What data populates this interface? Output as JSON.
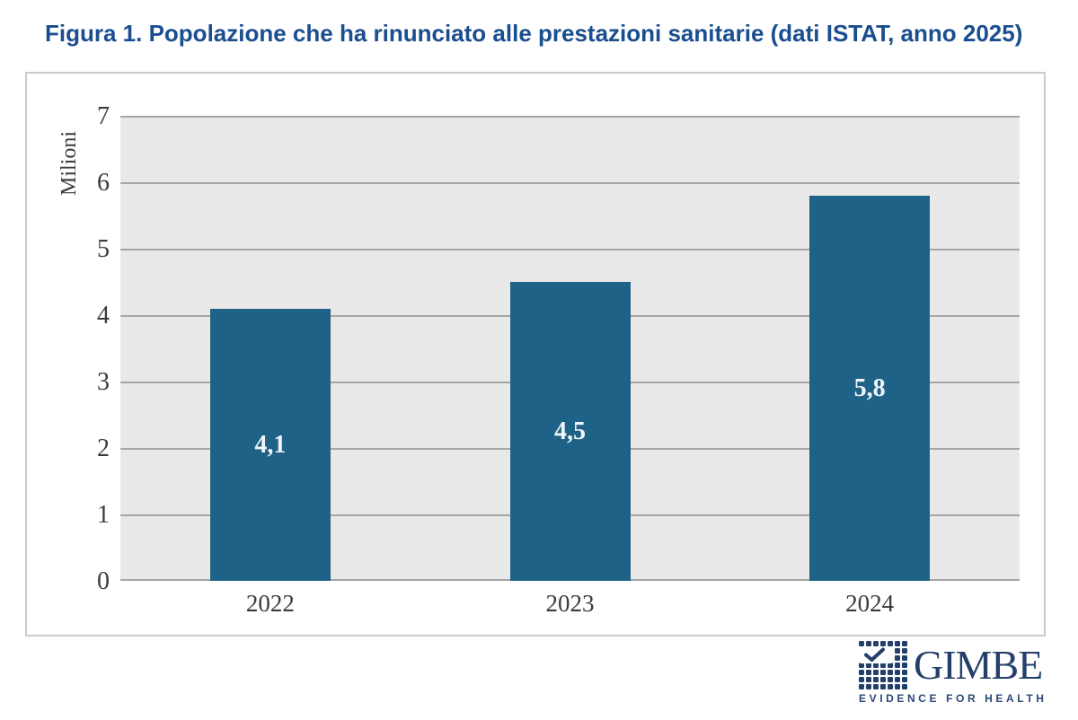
{
  "figure": {
    "title": "Figura 1. Popolazione che ha rinunciato alle prestazioni sanitarie (dati ISTAT, anno 2025)",
    "title_color": "#1A4E8F"
  },
  "chart_data": {
    "type": "bar",
    "categories": [
      "2022",
      "2023",
      "2024"
    ],
    "values": [
      4.1,
      4.5,
      5.8
    ],
    "bar_labels": [
      "4,1",
      "4,5",
      "5,8"
    ],
    "title": "",
    "xlabel": "",
    "ylabel": "Milioni",
    "ylim": [
      0,
      7
    ],
    "yticks": [
      0,
      1,
      2,
      3,
      4,
      5,
      6,
      7
    ],
    "grid": "horizontal",
    "legend": "none",
    "bar_color": "#1F6287",
    "bar_label_color": "#F0F5F9",
    "plot_background": "#E9E9E9",
    "gridline_color": "#A6A6A6",
    "frame_border_color": "#CBCBCB"
  },
  "logo": {
    "name": "GIMBE",
    "tagline": "EVIDENCE FOR HEALTH",
    "color": "#253F6B",
    "icon": "gimbe-dot-matrix-check"
  }
}
